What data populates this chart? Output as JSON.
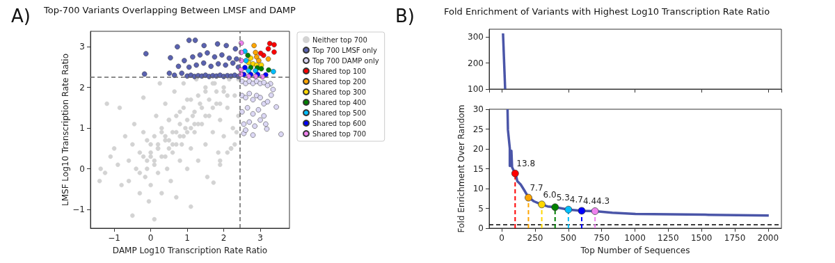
{
  "chart_data": [
    {
      "type": "scatter",
      "title": "Top-700 Variants Overlapping Between LMSF and DAMP",
      "xlabel": "DAMP Log10 Transcription Rate Ratio",
      "ylabel": "LMSF Log10 Transcription Rate Ratio",
      "annotations": [
        "A)"
      ],
      "xlim": [
        -1.65,
        3.8
      ],
      "ylim": [
        -1.46,
        3.38
      ],
      "xticks": [
        -1,
        0,
        1,
        2,
        3
      ],
      "yticks": [
        -1,
        0,
        1,
        2,
        3
      ],
      "legend": "right",
      "marker": "circle",
      "ref_lines": [
        {
          "axis": "x",
          "value": 2.45,
          "color": "#666666",
          "line_style": "dashed"
        },
        {
          "axis": "y",
          "value": 2.25,
          "color": "#666666",
          "line_style": "dashed"
        }
      ],
      "series": [
        {
          "name": "Neither top 700",
          "color": "#d3d3d3",
          "x": [
            -1.4,
            -1.37,
            -1.2,
            -1.25,
            -1.1,
            -1.0,
            -0.9,
            -0.85,
            -0.8,
            -0.7,
            -0.6,
            -0.6,
            -0.5,
            -0.5,
            -0.45,
            -0.4,
            -0.3,
            -0.3,
            -0.2,
            -0.2,
            -0.15,
            -0.1,
            -0.05,
            0.0,
            0.0,
            0.1,
            0.1,
            0.15,
            0.2,
            0.2,
            0.25,
            0.3,
            0.3,
            0.4,
            0.4,
            0.45,
            0.5,
            0.5,
            0.55,
            0.6,
            0.65,
            0.7,
            0.7,
            0.8,
            0.8,
            0.85,
            0.9,
            0.95,
            1.0,
            1.0,
            1.1,
            1.1,
            1.15,
            1.2,
            1.25,
            1.3,
            1.35,
            1.4,
            1.5,
            1.5,
            1.55,
            1.6,
            1.7,
            1.72,
            1.75,
            1.8,
            1.85,
            1.9,
            2.0,
            2.0,
            2.1,
            2.15,
            2.2,
            2.25,
            2.3,
            2.35,
            2.4,
            2.4,
            1.9,
            2.3,
            -0.3,
            -0.1,
            0.1,
            0.3,
            0.5,
            0.7,
            0.9,
            1.1,
            1.3,
            1.5,
            1.7,
            1.9,
            2.1,
            -0.2,
            0.0,
            0.2,
            0.4,
            0.6,
            0.8,
            1.0,
            1.2,
            1.4,
            1.6,
            1.8,
            2.0,
            2.2,
            -0.1,
            0.1,
            0.3,
            0.5,
            0.7,
            0.9,
            1.1,
            1.3,
            1.5,
            1.7,
            1.9,
            2.1,
            0.0,
            0.2,
            0.4,
            0.6,
            0.8,
            1.0,
            1.2
          ],
          "values": [
            -0.3,
            0.0,
            1.6,
            -0.1,
            0.3,
            0.5,
            0.1,
            1.5,
            -0.4,
            0.8,
            0.2,
            -0.3,
            -1.15,
            0.6,
            1.1,
            0.0,
            -0.6,
            0.4,
            1.75,
            0.9,
            -0.2,
            0.2,
            -0.8,
            0.6,
            -0.4,
            -1.24,
            0.1,
            1.3,
            0.5,
            -0.1,
            2.1,
            0.9,
            -0.6,
            0.3,
            1.6,
            0.0,
            0.7,
            1.2,
            -0.3,
            0.4,
            1.9,
            0.9,
            -0.7,
            0.2,
            1.4,
            0.6,
            2.1,
            1.0,
            0.0,
            1.7,
            0.5,
            -0.93,
            1.3,
            0.9,
            2.2,
            0.2,
            1.6,
            1.1,
            0.6,
            1.9,
            -0.2,
            1.3,
            0.9,
            -0.34,
            2.1,
            1.6,
            0.4,
            1.2,
            1.9,
            0.8,
            1.5,
            2.2,
            0.5,
            1.0,
            1.8,
            0.9,
            1.3,
            2.2,
            0.1,
            0.6,
            -0.1,
            0.0,
            0.2,
            0.3,
            0.5,
            0.6,
            0.8,
            1.0,
            1.1,
            1.3,
            1.5,
            1.6,
            1.8,
            0.3,
            0.4,
            0.6,
            0.8,
            0.9,
            1.1,
            1.2,
            1.4,
            1.5,
            1.7,
            1.9,
            2.0,
            0.5,
            0.7,
            0.8,
            1.0,
            1.2,
            1.3,
            1.5,
            1.7,
            1.8,
            2.0,
            2.1,
            0.2,
            0.4,
            0.3,
            0.5,
            0.7,
            0.6,
            0.8,
            0.9,
            1.1
          ]
        },
        {
          "name": "Top 700 LMSF only",
          "color": "#5a62b0",
          "x": [
            -0.13,
            -0.17,
            0.54,
            0.73,
            1.05,
            1.22,
            1.46,
            1.83,
            2.07,
            2.32,
            0.51,
            0.76,
            0.92,
            1.0,
            1.1,
            1.2,
            1.3,
            1.4,
            1.5,
            1.6,
            1.7,
            1.8,
            1.9,
            2.0,
            2.1,
            2.2,
            2.3,
            2.4,
            1.05,
            1.25,
            1.45,
            1.65,
            1.85,
            2.05,
            2.25,
            2.4,
            1.15,
            1.35,
            1.55,
            1.75,
            1.95,
            2.15,
            2.35,
            0.85,
            0.65
          ],
          "values": [
            2.83,
            2.33,
            2.73,
            3.0,
            3.16,
            3.16,
            3.03,
            3.07,
            3.03,
            2.95,
            2.35,
            2.52,
            2.66,
            2.28,
            2.3,
            2.27,
            2.29,
            2.28,
            2.3,
            2.27,
            2.29,
            2.28,
            2.3,
            2.27,
            2.29,
            2.28,
            2.3,
            2.27,
            2.5,
            2.55,
            2.6,
            2.52,
            2.58,
            2.55,
            2.6,
            2.5,
            2.75,
            2.8,
            2.85,
            2.75,
            2.8,
            2.72,
            2.7,
            2.35,
            2.3
          ]
        },
        {
          "name": "Top 700 DAMP only",
          "color": "#dcd8f5",
          "x": [
            3.57,
            3.44,
            3.18,
            2.8,
            2.55,
            3.28,
            3.3,
            2.5,
            2.6,
            2.7,
            2.8,
            2.9,
            3.0,
            3.1,
            3.2,
            2.5,
            2.6,
            2.7,
            2.8,
            2.9,
            3.0,
            3.1,
            3.2,
            2.5,
            2.65,
            2.8,
            2.95,
            3.1,
            2.55,
            2.7,
            2.85,
            3.0,
            3.15,
            2.6,
            3.35
          ],
          "values": [
            0.85,
            1.52,
            0.98,
            0.83,
            0.87,
            2.09,
            1.81,
            2.15,
            2.1,
            2.15,
            2.1,
            2.15,
            2.1,
            2.12,
            2.05,
            1.8,
            1.75,
            1.85,
            1.7,
            1.8,
            1.75,
            1.6,
            1.65,
            1.4,
            1.5,
            1.35,
            1.45,
            1.3,
            1.1,
            1.15,
            1.05,
            1.2,
            1.1,
            0.95,
            1.95
          ]
        },
        {
          "name": "Shared top 100",
          "color": "#ff0000",
          "x": [
            3.26,
            3.38,
            3.38,
            3.09,
            3.01,
            3.22
          ],
          "values": [
            3.08,
            3.05,
            2.87,
            2.79,
            2.84,
            2.95
          ]
        },
        {
          "name": "Shared top 200",
          "color": "#ffa500",
          "x": [
            2.83,
            2.87,
            3.22,
            2.9,
            2.96
          ],
          "values": [
            3.03,
            2.86,
            2.7,
            2.75,
            2.66
          ]
        },
        {
          "name": "Shared top 300",
          "color": "#ffd700",
          "x": [
            2.74,
            2.8,
            2.9,
            3.03,
            2.68
          ],
          "values": [
            2.72,
            2.58,
            2.55,
            2.55,
            2.61
          ]
        },
        {
          "name": "Shared top 400",
          "color": "#008000",
          "x": [
            2.66,
            3.23,
            2.74,
            2.92,
            3.03
          ],
          "values": [
            2.79,
            2.43,
            2.49,
            2.48,
            2.46
          ]
        },
        {
          "name": "Shared top 500",
          "color": "#00bfff",
          "x": [
            2.58,
            3.36,
            2.68,
            2.87,
            2.61
          ],
          "values": [
            2.89,
            2.39,
            2.41,
            2.41,
            2.66
          ]
        },
        {
          "name": "Shared top 600",
          "color": "#0000ff",
          "x": [
            2.55,
            2.74,
            2.93,
            3.15,
            2.58
          ],
          "values": [
            2.32,
            2.32,
            2.32,
            2.31,
            2.49
          ]
        },
        {
          "name": "Shared top 700",
          "color": "#ee82ee",
          "x": [
            2.48,
            2.48,
            2.48,
            2.47,
            2.47,
            2.68,
            2.87,
            3.06
          ],
          "values": [
            3.09,
            2.86,
            2.66,
            2.43,
            2.32,
            2.27,
            2.27,
            2.26
          ]
        }
      ]
    },
    {
      "type": "line",
      "title": "Fold Enrichment of Variants with Highest Log10 Transcription Rate Ratio",
      "annotations": [
        "B)"
      ],
      "xlim": [
        -95,
        2100
      ],
      "ylim": [
        100,
        330
      ],
      "yticks": [
        100,
        200,
        300
      ],
      "tick_labels": "y",
      "series": [
        {
          "color": "#4a55a8",
          "x": [
            9,
            25
          ],
          "values": [
            314,
            100
          ]
        }
      ]
    },
    {
      "type": "line",
      "xlabel": "Top Number of Sequences",
      "ylabel": "Fold Enrichment Over Random",
      "xlim": [
        -95,
        2100
      ],
      "ylim": [
        0,
        30
      ],
      "xticks": [
        0,
        250,
        500,
        750,
        1000,
        1250,
        1500,
        1750,
        2000
      ],
      "yticks": [
        0,
        5,
        10,
        15,
        20,
        25,
        30
      ],
      "ref_lines": [
        {
          "axis": "y",
          "value": 1,
          "color": "#000000",
          "line_style": "dashed"
        }
      ],
      "series": [
        {
          "color": "#4a55a8",
          "x": [
            43,
            46,
            60,
            60,
            72,
            77,
            99,
            108,
            116,
            142,
            168,
            200,
            240,
            297,
            344,
            400,
            500,
            601,
            700,
            830,
            1004,
            1265,
            1526,
            2005
          ],
          "values": [
            30.0,
            24.8,
            20.1,
            15.7,
            19.5,
            15.4,
            13.8,
            13.1,
            11.9,
            11.0,
            9.6,
            7.8,
            6.8,
            6.0,
            5.5,
            5.3,
            4.7,
            4.4,
            4.3,
            3.9,
            3.6,
            3.5,
            3.4,
            3.2
          ]
        },
        {
          "type": "lollipop",
          "line_style": "dashed",
          "marker": "circle",
          "x": [
            100,
            200,
            300,
            400,
            500,
            600,
            700
          ],
          "values": [
            13.8,
            7.7,
            6.0,
            5.3,
            4.7,
            4.4,
            4.3
          ],
          "colors": [
            "#ff0000",
            "#ffa500",
            "#ffd700",
            "#008000",
            "#00bfff",
            "#0000ff",
            "#ee82ee"
          ],
          "value_labels": [
            "13.8",
            "7.7",
            "6.0",
            "5.3",
            "4.7",
            "4.4",
            "4.3"
          ]
        }
      ]
    }
  ]
}
